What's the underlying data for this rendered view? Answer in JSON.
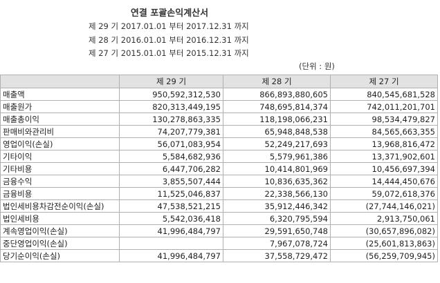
{
  "title": "연결 포괄손익계산서",
  "periods": [
    "제 29 기 2017.01.01 부터 2017.12.31 까지",
    "제 28 기 2016.01.01 부터 2016.12.31 까지",
    "제 27 기 2015.01.01 부터 2015.12.31 까지"
  ],
  "unit": "(단위 : 원)",
  "columns": [
    "",
    "제 29 기",
    "제 28 기",
    "제 27 기"
  ],
  "rows": [
    {
      "label": "매출액",
      "v29": "950,592,312,530",
      "v28": "866,893,880,605",
      "v27": "840,545,681,528"
    },
    {
      "label": "매출원가",
      "v29": "820,313,449,195",
      "v28": "748,695,814,374",
      "v27": "742,011,201,701"
    },
    {
      "label": "매출총이익",
      "v29": "130,278,863,335",
      "v28": "118,198,066,231",
      "v27": "98,534,479,827"
    },
    {
      "label": "판매비와관리비",
      "v29": "74,207,779,381",
      "v28": "65,948,848,538",
      "v27": "84,565,663,355"
    },
    {
      "label": "영업이익(손실)",
      "v29": "56,071,083,954",
      "v28": "52,249,217,693",
      "v27": "13,968,816,472"
    },
    {
      "label": "기타이익",
      "v29": "5,584,682,936",
      "v28": "5,579,961,386",
      "v27": "13,371,902,601"
    },
    {
      "label": "기타비용",
      "v29": "6,447,706,282",
      "v28": "10,414,801,969",
      "v27": "10,456,697,394"
    },
    {
      "label": "금융수익",
      "v29": "3,855,507,444",
      "v28": "10,836,635,362",
      "v27": "14,444,450,676"
    },
    {
      "label": "금융비용",
      "v29": "11,525,046,837",
      "v28": "22,338,566,130",
      "v27": "59,072,618,376"
    },
    {
      "label": "법인세비용차감전순이익(손실)",
      "v29": "47,538,521,215",
      "v28": "35,912,446,342",
      "v27": "(27,744,146,021)"
    },
    {
      "label": "법인세비용",
      "v29": "5,542,036,418",
      "v28": "6,320,795,594",
      "v27": "2,913,750,061"
    },
    {
      "label": "계속영업이익(손실)",
      "v29": "41,996,484,797",
      "v28": "29,591,650,748",
      "v27": "(30,657,896,082)"
    },
    {
      "label": "중단영업이익(손실)",
      "v29": "",
      "v28": "7,967,078,724",
      "v27": "(25,601,813,863)"
    },
    {
      "label": "당기순이익(손실)",
      "v29": "41,996,484,797",
      "v28": "37,558,729,472",
      "v27": "(56,259,709,945)"
    }
  ]
}
